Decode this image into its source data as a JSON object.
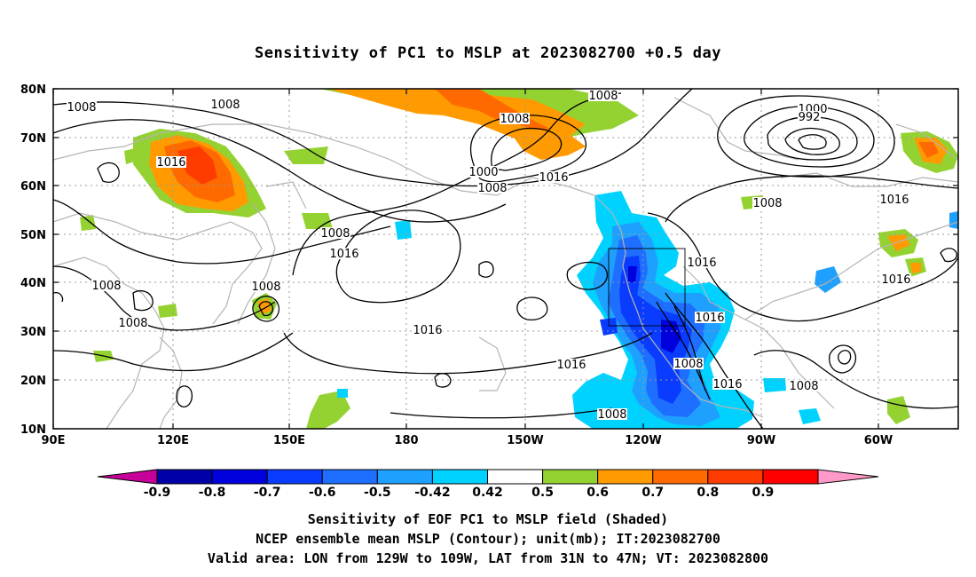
{
  "title": "Sensitivity of PC1 to MSLP at 2023082700 +0.5 day",
  "map": {
    "lat_labels": [
      "80N",
      "70N",
      "60N",
      "50N",
      "40N",
      "30N",
      "20N",
      "10N"
    ],
    "lon_labels": [
      "90E",
      "120E",
      "150E",
      "180",
      "150W",
      "120W",
      "90W",
      "60W"
    ],
    "contour_labels": [
      "1008",
      "1008",
      "1016",
      "1008",
      "1008",
      "1008",
      "1008",
      "1016",
      "1008",
      "1008",
      "1000",
      "1008",
      "1016",
      "1016",
      "1016",
      "1000",
      "992",
      "1008",
      "1016",
      "1016",
      "1016",
      "1016",
      "1008",
      "1016",
      "1008",
      "1008"
    ]
  },
  "colorbar": {
    "labels": [
      "-0.9",
      "-0.8",
      "-0.7",
      "-0.6",
      "-0.5",
      "-0.42",
      "0.42",
      "0.5",
      "0.6",
      "0.7",
      "0.8",
      "0.9"
    ],
    "colors": [
      "#0000a8",
      "#0000dc",
      "#0a3cff",
      "#1e6eff",
      "#1ea0ff",
      "#00d2ff",
      "#ffffff",
      "#94d232",
      "#ff9a00",
      "#ff6a00",
      "#ff3c00",
      "#ff0000"
    ],
    "end_low_color": "#c8009a",
    "end_high_color": "#ff9ac8"
  },
  "captions": [
    "Sensitivity of EOF PC1 to MSLP field (Shaded)",
    "NCEP ensemble mean MSLP (Contour); unit(mb); IT:2023082700",
    "Valid area: LON from 129W to 109W, LAT from 31N to 47N; VT: 2023082800"
  ]
}
